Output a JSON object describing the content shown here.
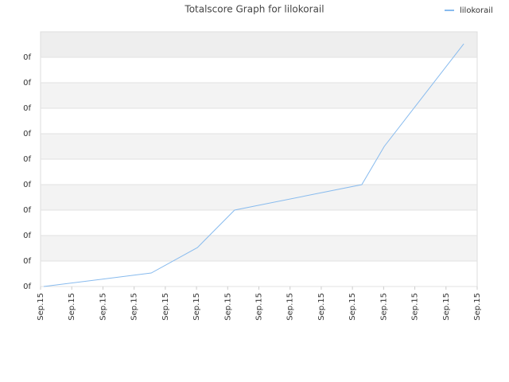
{
  "chart_data": {
    "type": "line",
    "title": "Totalscore Graph for lilokorail",
    "x": [
      0.1,
      3.55,
      5.03,
      6.22,
      10.3,
      11.02,
      13.57
    ],
    "series": [
      {
        "name": "lilokorail",
        "color": "#88bbee",
        "values": [
          0,
          0.53,
          1.53,
          3.0,
          4.0,
          5.5,
          9.53
        ]
      }
    ],
    "xlim": [
      0,
      14
    ],
    "xticks": [
      {
        "value": 0,
        "label": "Sep.15"
      },
      {
        "value": 1,
        "label": "Sep.15"
      },
      {
        "value": 2,
        "label": "Sep.15"
      },
      {
        "value": 3,
        "label": "Sep.15"
      },
      {
        "value": 4,
        "label": "Sep.15"
      },
      {
        "value": 5,
        "label": "Sep.15"
      },
      {
        "value": 6,
        "label": "Sep.15"
      },
      {
        "value": 7,
        "label": "Sep.15"
      },
      {
        "value": 8,
        "label": "Sep.15"
      },
      {
        "value": 9,
        "label": "Sep.15"
      },
      {
        "value": 10,
        "label": "Sep.15"
      },
      {
        "value": 11,
        "label": "Sep.15"
      },
      {
        "value": 12,
        "label": "Sep.15"
      },
      {
        "value": 13,
        "label": "Sep.15"
      },
      {
        "value": 14,
        "label": "Sep.15"
      }
    ],
    "ylim": [
      0,
      10
    ],
    "yticks": [
      {
        "value": 0,
        "label": "0f"
      },
      {
        "value": 1,
        "label": "0f"
      },
      {
        "value": 2,
        "label": "0f"
      },
      {
        "value": 3,
        "label": "0f"
      },
      {
        "value": 4,
        "label": "0f"
      },
      {
        "value": 5,
        "label": "0f"
      },
      {
        "value": 6,
        "label": "0f"
      },
      {
        "value": 7,
        "label": "0f"
      },
      {
        "value": 8,
        "label": "0f"
      },
      {
        "value": 9,
        "label": "0f"
      }
    ],
    "grid": true,
    "legend": "top-right"
  }
}
